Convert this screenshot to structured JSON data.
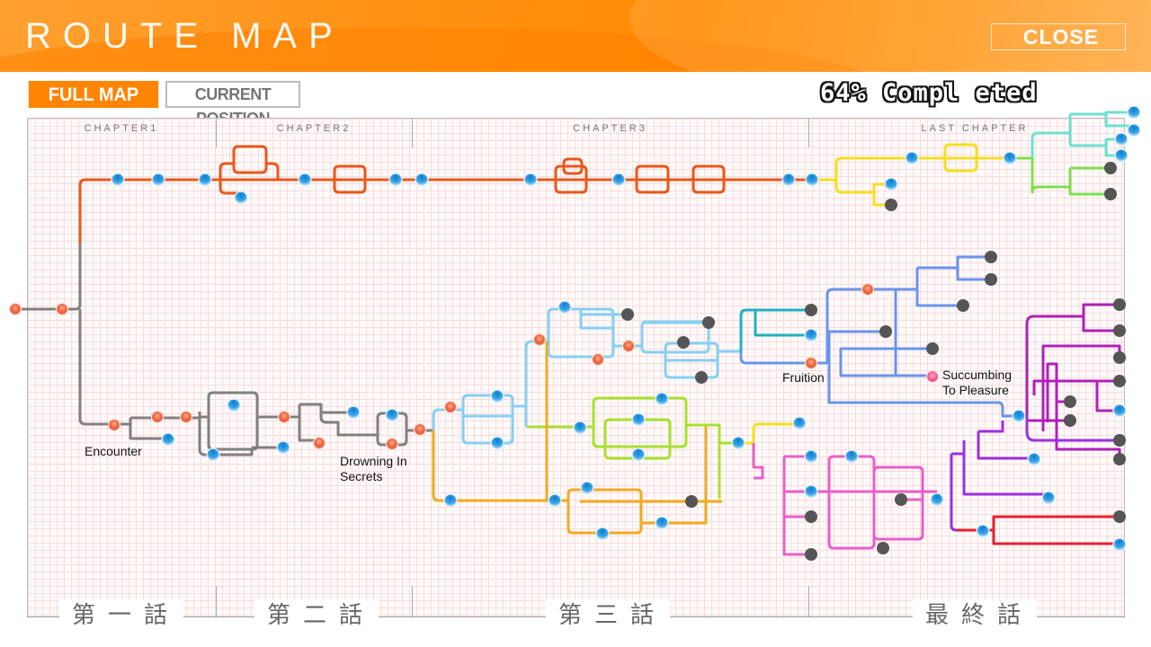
{
  "header": {
    "title": "ROUTE MAP",
    "close_label": "CLOSE"
  },
  "tabs": [
    {
      "label": "FULL MAP",
      "active": true
    },
    {
      "label": "CURRENT POSITION",
      "active": false
    }
  ],
  "completion": {
    "percent": 64,
    "label": "64% Compl eted"
  },
  "chapters": [
    "CHAPTER1",
    "CHAPTER2",
    "CHAPTER3",
    "LAST CHAPTER"
  ],
  "chapter_footer": [
    "第一話",
    "第二話",
    "第三話",
    "最終話"
  ],
  "node_labels": {
    "encounter": "Encounter",
    "drowning": "Drowning In Secrets",
    "fruition": "Fruition",
    "succumbing": "Succumbing To Pleasure"
  },
  "colors": {
    "accent": "#ff8400",
    "visited_node": "#f07050",
    "unlocked_node": "#2a95dc",
    "locked_node": "#555555",
    "ending_node": "#e84080"
  }
}
